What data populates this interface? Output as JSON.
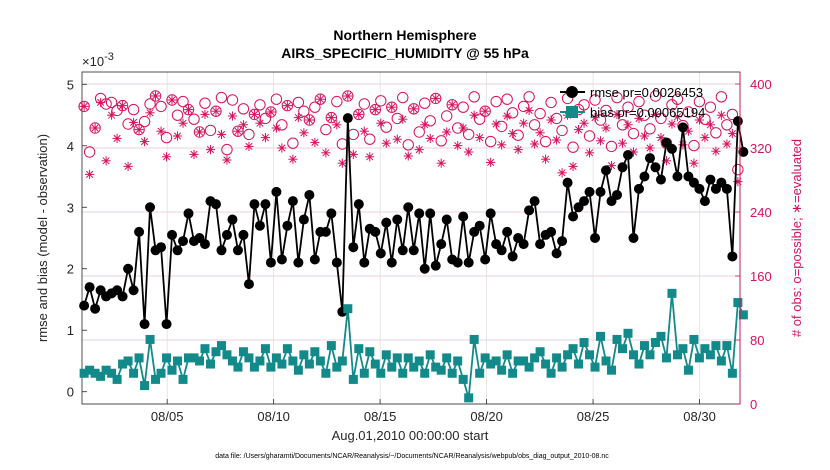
{
  "chart_data": {
    "type": "line",
    "title": "Northern Hemisphere",
    "subtitle": "AIRS_SPECIFIC_HUMIDITY @ 55 hPa",
    "xlabel": "Aug.01,2010 00:00:00 start",
    "ylabel_left": "rmse and bias (model - observation)",
    "ylabel_right": "# of obs: o=possible; ∗=evaluated",
    "y_exponent_label": "×10",
    "y_exponent_power": "-3",
    "footer": "data file: /Users/gharamti/Documents/NCAR/Reanalysis/~/Documents/NCAR/Reanalysis/webpub/obs_diag_output_2010-08.nc",
    "x_ticks": [
      "08/05",
      "08/10",
      "08/15",
      "08/20",
      "08/25",
      "08/30"
    ],
    "x_tick_days": [
      5,
      10,
      15,
      20,
      25,
      30
    ],
    "xlim": [
      1,
      31.9
    ],
    "ylim_left": [
      -0.0002,
      0.0052
    ],
    "yticks_left": [
      0,
      1,
      2,
      3,
      4,
      5
    ],
    "ylim_right": [
      0,
      415
    ],
    "yticks_right": [
      0,
      80,
      160,
      240,
      320,
      400
    ],
    "grid": true,
    "legend_position": "top-right",
    "colors": {
      "rmse": "#000000",
      "bias": "#128a8a",
      "obs": "#d6125c",
      "right_axis": "#d6125c"
    },
    "series": [
      {
        "name": "rmse pr=0.0026453",
        "axis": "left",
        "unit_scale": 0.001,
        "values": [
          1.4,
          1.7,
          1.35,
          1.65,
          1.55,
          1.6,
          1.65,
          1.55,
          2.0,
          1.65,
          2.6,
          1.1,
          3.0,
          2.3,
          2.35,
          1.1,
          2.55,
          2.3,
          2.45,
          2.9,
          2.45,
          2.5,
          2.4,
          3.1,
          3.05,
          2.3,
          2.55,
          2.8,
          2.3,
          2.55,
          1.75,
          3.05,
          2.7,
          3.05,
          2.1,
          3.25,
          2.15,
          2.7,
          3.1,
          2.1,
          2.8,
          3.2,
          2.15,
          2.6,
          2.6,
          2.9,
          2.1,
          1.3,
          4.45,
          2.35,
          3.05,
          2.1,
          2.65,
          2.6,
          2.25,
          2.75,
          2.1,
          2.8,
          2.3,
          3.0,
          2.3,
          2.9,
          2.0,
          2.9,
          2.05,
          2.4,
          2.8,
          2.15,
          2.1,
          2.85,
          2.1,
          2.6,
          2.7,
          2.15,
          2.9,
          2.4,
          2.3,
          2.6,
          2.2,
          2.5,
          2.4,
          2.95,
          3.1,
          2.4,
          2.55,
          2.6,
          2.25,
          2.45,
          3.4,
          2.85,
          3.0,
          3.1,
          3.25,
          2.5,
          3.25,
          3.6,
          3.1,
          3.2,
          3.65,
          3.85,
          2.5,
          3.3,
          3.5,
          3.8,
          3.65,
          3.45,
          4.05,
          3.95,
          3.5,
          4.3,
          3.5,
          3.4,
          3.3,
          3.1,
          3.45,
          3.3,
          3.4,
          3.3,
          2.2,
          4.4,
          3.9
        ]
      },
      {
        "name": "bias pr=0.00065194",
        "axis": "left",
        "unit_scale": 0.001,
        "values": [
          0.3,
          0.35,
          0.3,
          0.25,
          0.35,
          0.3,
          0.2,
          0.45,
          0.5,
          0.3,
          0.55,
          0.1,
          0.85,
          0.2,
          0.3,
          0.55,
          0.35,
          0.5,
          0.2,
          0.55,
          0.55,
          0.5,
          0.7,
          0.45,
          0.65,
          0.75,
          0.6,
          0.5,
          0.4,
          0.65,
          0.55,
          0.4,
          0.5,
          0.7,
          0.4,
          0.55,
          0.45,
          0.7,
          0.5,
          0.35,
          0.6,
          0.45,
          0.65,
          0.5,
          0.3,
          0.75,
          0.4,
          0.5,
          1.35,
          0.2,
          0.7,
          0.3,
          0.65,
          0.45,
          0.3,
          0.6,
          0.4,
          0.55,
          0.3,
          0.55,
          0.4,
          0.5,
          0.3,
          0.6,
          0.4,
          0.35,
          0.55,
          0.3,
          0.5,
          0.2,
          -0.1,
          0.85,
          0.3,
          0.55,
          0.45,
          0.5,
          0.35,
          0.6,
          0.3,
          0.5,
          0.5,
          0.4,
          0.55,
          0.65,
          0.45,
          0.3,
          0.55,
          0.4,
          0.6,
          0.7,
          0.45,
          0.8,
          0.6,
          0.4,
          0.9,
          0.5,
          0.35,
          0.85,
          0.7,
          0.95,
          0.6,
          0.45,
          0.75,
          0.6,
          0.8,
          0.9,
          0.55,
          1.6,
          0.6,
          0.7,
          0.35,
          0.85,
          0.55,
          0.7,
          0.6,
          0.75,
          0.5,
          0.75,
          0.3,
          1.45,
          1.25
        ]
      },
      {
        "name": "possible obs",
        "axis": "right",
        "values": [
          372,
          315,
          345,
          382,
          375,
          377,
          367,
          373,
          350,
          368,
          343,
          353,
          375,
          385,
          372,
          333,
          380,
          361,
          378,
          368,
          356,
          340,
          376,
          342,
          366,
          383,
          318,
          380,
          341,
          369,
          337,
          362,
          374,
          357,
          365,
          381,
          349,
          373,
          326,
          377,
          366,
          355,
          371,
          381,
          343,
          358,
          378,
          325,
          385,
          337,
          362,
          375,
          331,
          368,
          379,
          346,
          371,
          357,
          383,
          324,
          369,
          340,
          376,
          354,
          382,
          329,
          360,
          374,
          345,
          371,
          337,
          384,
          356,
          366,
          328,
          378,
          347,
          381,
          364,
          336,
          372,
          384,
          349,
          363,
          328,
          377,
          357,
          342,
          382,
          321,
          368,
          374,
          335,
          380,
          355,
          367,
          322,
          383,
          349,
          371,
          338,
          378,
          361,
          344,
          385,
          357,
          326,
          374,
          381,
          348,
          365,
          323,
          378,
          356,
          371,
          339,
          384,
          349,
          362,
          293
        ]
      },
      {
        "name": "evaluated obs",
        "axis": "right",
        "values": [
          372,
          287,
          345,
          377,
          304,
          361,
          332,
          373,
          297,
          352,
          343,
          328,
          364,
          385,
          341,
          309,
          380,
          335,
          351,
          368,
          312,
          340,
          362,
          318,
          366,
          337,
          305,
          360,
          341,
          349,
          322,
          362,
          351,
          333,
          365,
          345,
          320,
          373,
          306,
          358,
          339,
          355,
          327,
          381,
          314,
          358,
          349,
          301,
          385,
          312,
          362,
          341,
          309,
          368,
          351,
          326,
          371,
          331,
          356,
          310,
          369,
          318,
          349,
          332,
          382,
          301,
          340,
          374,
          323,
          345,
          315,
          361,
          333,
          366,
          302,
          350,
          324,
          360,
          338,
          318,
          351,
          367,
          325,
          339,
          306,
          355,
          330,
          289,
          361,
          297,
          343,
          351,
          314,
          358,
          329,
          345,
          298,
          362,
          326,
          349,
          315,
          357,
          335,
          320,
          362,
          333,
          304,
          350,
          359,
          324,
          341,
          301,
          355,
          333,
          349,
          316,
          361,
          325,
          338,
          278
        ]
      }
    ]
  }
}
